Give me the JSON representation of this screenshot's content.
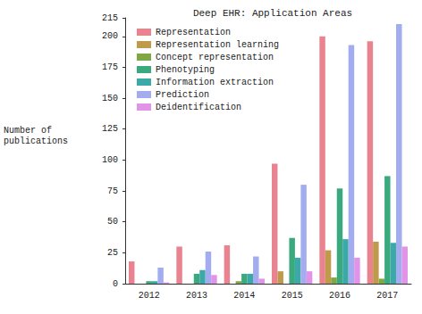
{
  "chart_data": {
    "type": "bar",
    "title": "Deep EHR: Application Areas",
    "y_label": "Number of\npublications",
    "categories": [
      "2012",
      "2013",
      "2014",
      "2015",
      "2016",
      "2017"
    ],
    "series": [
      {
        "name": "Representation",
        "color": "#e9838f",
        "values": [
          18,
          30,
          31,
          97,
          200,
          196
        ]
      },
      {
        "name": "Representation learning",
        "color": "#c09a4b",
        "values": [
          0,
          0,
          0,
          10,
          27,
          34
        ]
      },
      {
        "name": "Concept representation",
        "color": "#7fa844",
        "values": [
          0,
          0,
          2,
          0,
          5,
          4
        ]
      },
      {
        "name": "Phenotyping",
        "color": "#3aaa7e",
        "values": [
          2,
          8,
          8,
          37,
          77,
          87
        ]
      },
      {
        "name": "Information extraction",
        "color": "#3aa9a8",
        "values": [
          2,
          11,
          8,
          21,
          36,
          33
        ]
      },
      {
        "name": "Prediction",
        "color": "#a2acee",
        "values": [
          13,
          26,
          22,
          80,
          193,
          210
        ]
      },
      {
        "name": "Deidentification",
        "color": "#e193e8",
        "values": [
          1,
          7,
          4,
          10,
          21,
          30
        ]
      }
    ],
    "ylim": [
      0,
      215
    ],
    "yticks": [
      0,
      25,
      50,
      75,
      100,
      125,
      150,
      175,
      200
    ],
    "grid": false,
    "legend": "upper left"
  }
}
